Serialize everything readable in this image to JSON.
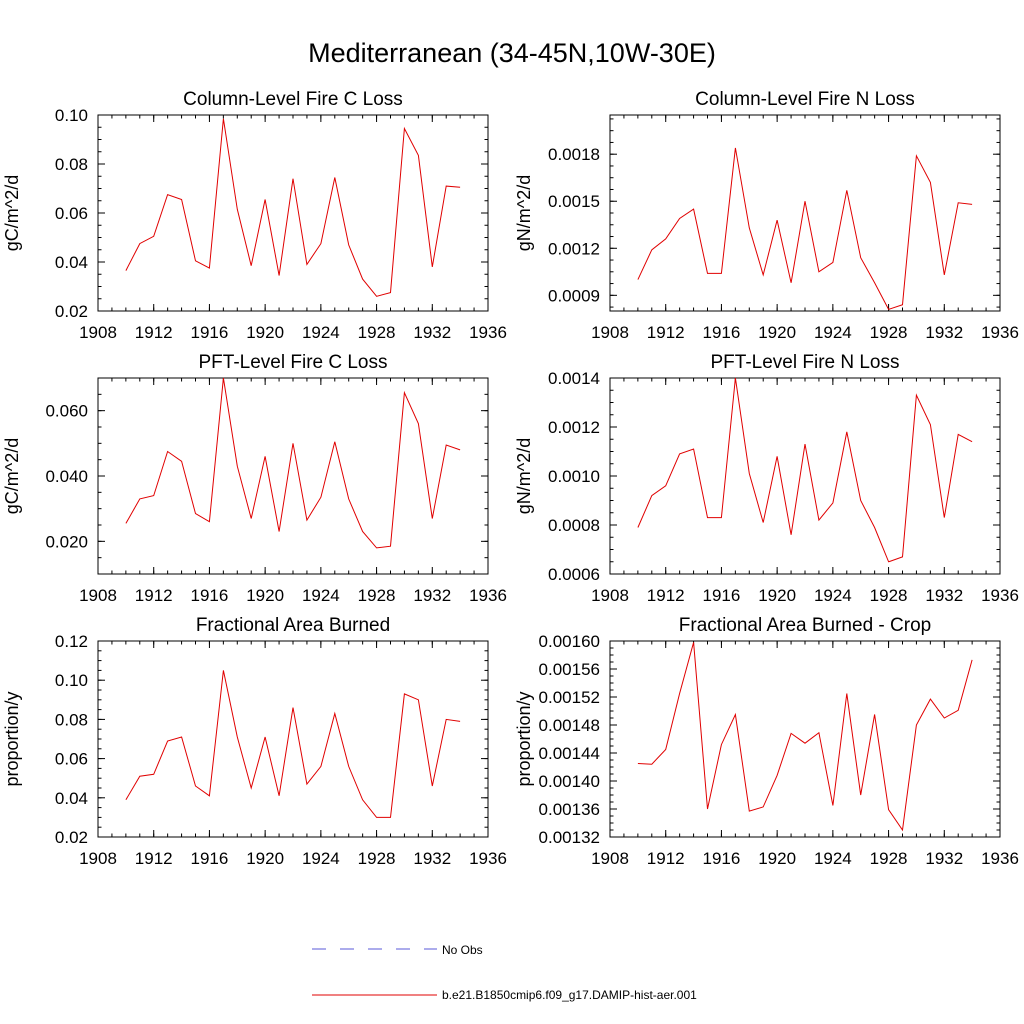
{
  "figure": {
    "title": "Mediterranean (34-45N,10W-30E)"
  },
  "legend": {
    "entries": [
      {
        "label": "No Obs",
        "color": "#5a5ad8",
        "dashed": true
      },
      {
        "label": "b.e21.B1850cmip6.f09_g17.DAMIP-hist-aer.001",
        "color": "#e00000",
        "dashed": false
      }
    ]
  },
  "chart_data": [
    {
      "type": "line",
      "title": "Column-Level Fire C Loss",
      "ylabel": "gC/m^2/d",
      "xlim": [
        1908,
        1936
      ],
      "ylim": [
        0.02,
        0.1
      ],
      "xticks": [
        "1908",
        "1912",
        "1916",
        "1920",
        "1924",
        "1928",
        "1932",
        "1936"
      ],
      "yticks": [
        "0.02",
        "0.04",
        "0.06",
        "0.08",
        "0.10"
      ],
      "series": [
        {
          "color": "#e00000",
          "x": [
            1910,
            1911,
            1912,
            1913,
            1914,
            1915,
            1916,
            1917,
            1918,
            1919,
            1920,
            1921,
            1922,
            1923,
            1924,
            1925,
            1926,
            1927,
            1928,
            1929,
            1930,
            1931,
            1932,
            1933,
            1934
          ],
          "values": [
            0.0365,
            0.0475,
            0.0505,
            0.0675,
            0.0655,
            0.0405,
            0.0375,
            0.0985,
            0.0615,
            0.0385,
            0.0655,
            0.0345,
            0.074,
            0.039,
            0.0475,
            0.0745,
            0.047,
            0.033,
            0.026,
            0.0275,
            0.0945,
            0.0835,
            0.038,
            0.071,
            0.0705
          ]
        }
      ]
    },
    {
      "type": "line",
      "title": "Column-Level Fire N Loss",
      "ylabel": "gN/m^2/d",
      "xlim": [
        1908,
        1936
      ],
      "ylim": [
        0.0008,
        0.00205
      ],
      "xticks": [
        "1908",
        "1912",
        "1916",
        "1920",
        "1924",
        "1928",
        "1932",
        "1936"
      ],
      "yticks": [
        "0.0009",
        "0.0012",
        "0.0015",
        "0.0018"
      ],
      "series": [
        {
          "color": "#e00000",
          "x": [
            1910,
            1911,
            1912,
            1913,
            1914,
            1915,
            1916,
            1917,
            1918,
            1919,
            1920,
            1921,
            1922,
            1923,
            1924,
            1925,
            1926,
            1927,
            1928,
            1929,
            1930,
            1931,
            1932,
            1933,
            1934
          ],
          "values": [
            0.001,
            0.00119,
            0.00126,
            0.00139,
            0.00145,
            0.00104,
            0.00104,
            0.00184,
            0.00133,
            0.00103,
            0.00138,
            0.00098,
            0.0015,
            0.00105,
            0.00111,
            0.00157,
            0.00114,
            0.00098,
            0.00081,
            0.00084,
            0.00179,
            0.00162,
            0.00103,
            0.00149,
            0.00148
          ]
        }
      ]
    },
    {
      "type": "line",
      "title": "PFT-Level Fire C Loss",
      "ylabel": "gC/m^2/d",
      "xlim": [
        1908,
        1936
      ],
      "ylim": [
        0.01,
        0.07
      ],
      "xticks": [
        "1908",
        "1912",
        "1916",
        "1920",
        "1924",
        "1928",
        "1932",
        "1936"
      ],
      "yticks": [
        "0.020",
        "0.040",
        "0.060"
      ],
      "series": [
        {
          "color": "#e00000",
          "x": [
            1910,
            1911,
            1912,
            1913,
            1914,
            1915,
            1916,
            1917,
            1918,
            1919,
            1920,
            1921,
            1922,
            1923,
            1924,
            1925,
            1926,
            1927,
            1928,
            1929,
            1930,
            1931,
            1932,
            1933,
            1934
          ],
          "values": [
            0.0255,
            0.033,
            0.034,
            0.0475,
            0.0445,
            0.0285,
            0.026,
            0.07,
            0.043,
            0.027,
            0.046,
            0.023,
            0.05,
            0.0265,
            0.0335,
            0.0505,
            0.033,
            0.023,
            0.018,
            0.0185,
            0.0655,
            0.056,
            0.027,
            0.0495,
            0.048
          ]
        }
      ]
    },
    {
      "type": "line",
      "title": "PFT-Level Fire N Loss",
      "ylabel": "gN/m^2/d",
      "xlim": [
        1908,
        1936
      ],
      "ylim": [
        0.0006,
        0.0014
      ],
      "xticks": [
        "1908",
        "1912",
        "1916",
        "1920",
        "1924",
        "1928",
        "1932",
        "1936"
      ],
      "yticks": [
        "0.0006",
        "0.0008",
        "0.0010",
        "0.0012",
        "0.0014"
      ],
      "series": [
        {
          "color": "#e00000",
          "x": [
            1910,
            1911,
            1912,
            1913,
            1914,
            1915,
            1916,
            1917,
            1918,
            1919,
            1920,
            1921,
            1922,
            1923,
            1924,
            1925,
            1926,
            1927,
            1928,
            1929,
            1930,
            1931,
            1932,
            1933,
            1934
          ],
          "values": [
            0.00079,
            0.00092,
            0.00096,
            0.00109,
            0.00111,
            0.00083,
            0.00083,
            0.0014,
            0.00101,
            0.00081,
            0.00108,
            0.00076,
            0.00113,
            0.00082,
            0.00089,
            0.00118,
            0.0009,
            0.00079,
            0.00065,
            0.00067,
            0.00133,
            0.00121,
            0.00083,
            0.00117,
            0.00114
          ]
        }
      ]
    },
    {
      "type": "line",
      "title": "Fractional Area Burned",
      "ylabel": "proportion/y",
      "xlim": [
        1908,
        1936
      ],
      "ylim": [
        0.02,
        0.12
      ],
      "xticks": [
        "1908",
        "1912",
        "1916",
        "1920",
        "1924",
        "1928",
        "1932",
        "1936"
      ],
      "yticks": [
        "0.02",
        "0.04",
        "0.06",
        "0.08",
        "0.10",
        "0.12"
      ],
      "series": [
        {
          "color": "#e00000",
          "x": [
            1910,
            1911,
            1912,
            1913,
            1914,
            1915,
            1916,
            1917,
            1918,
            1919,
            1920,
            1921,
            1922,
            1923,
            1924,
            1925,
            1926,
            1927,
            1928,
            1929,
            1930,
            1931,
            1932,
            1933,
            1934
          ],
          "values": [
            0.039,
            0.051,
            0.052,
            0.069,
            0.071,
            0.046,
            0.041,
            0.105,
            0.071,
            0.045,
            0.071,
            0.041,
            0.086,
            0.047,
            0.056,
            0.083,
            0.056,
            0.039,
            0.03,
            0.03,
            0.093,
            0.09,
            0.046,
            0.08,
            0.079
          ]
        }
      ]
    },
    {
      "type": "line",
      "title": "Fractional Area Burned - Crop",
      "ylabel": "proportion/y",
      "xlim": [
        1908,
        1936
      ],
      "ylim": [
        0.00132,
        0.0016
      ],
      "xticks": [
        "1908",
        "1912",
        "1916",
        "1920",
        "1924",
        "1928",
        "1932",
        "1936"
      ],
      "yticks": [
        "0.00132",
        "0.00136",
        "0.00140",
        "0.00144",
        "0.00148",
        "0.00152",
        "0.00156",
        "0.00160"
      ],
      "series": [
        {
          "color": "#e00000",
          "x": [
            1910,
            1911,
            1912,
            1913,
            1914,
            1915,
            1916,
            1917,
            1918,
            1919,
            1920,
            1921,
            1922,
            1923,
            1924,
            1925,
            1926,
            1927,
            1928,
            1929,
            1930,
            1931,
            1932,
            1933,
            1934
          ],
          "values": [
            0.001425,
            0.001424,
            0.001445,
            0.001525,
            0.001598,
            0.00136,
            0.001452,
            0.001495,
            0.001357,
            0.001363,
            0.001408,
            0.001468,
            0.001454,
            0.001469,
            0.001365,
            0.001525,
            0.00138,
            0.001495,
            0.001359,
            0.00133,
            0.00148,
            0.001517,
            0.00149,
            0.001501,
            0.001573
          ]
        }
      ]
    }
  ]
}
